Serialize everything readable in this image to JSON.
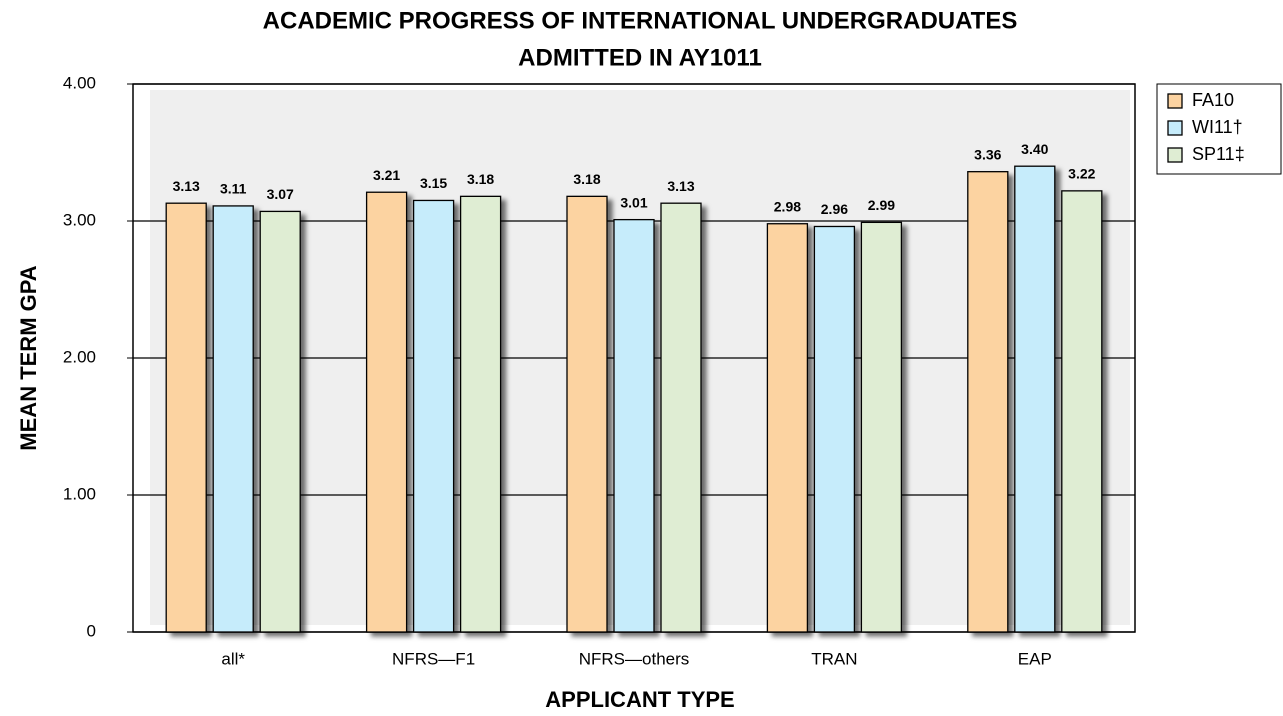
{
  "chart_data": {
    "type": "bar",
    "title": [
      "ACADEMIC PROGRESS OF INTERNATIONAL UNDERGRADUATES",
      "ADMITTED IN AY1011"
    ],
    "x_label": "APPLICANT TYPE",
    "y_label": "MEAN TERM GPA",
    "categories": [
      "all*",
      "NFRS—F1",
      "NFRS—others",
      "TRAN",
      "EAP"
    ],
    "series": [
      {
        "name": "FA10",
        "color": "#fcd3a1",
        "values": [
          3.13,
          3.21,
          3.18,
          2.98,
          3.36
        ],
        "value_labels": [
          "3.13",
          "3.21",
          "3.18",
          "2.98",
          "3.36"
        ]
      },
      {
        "name": "WI11†",
        "color": "#c6ecfb",
        "values": [
          3.11,
          3.15,
          3.01,
          2.96,
          3.4
        ],
        "value_labels": [
          "3.11",
          "3.15",
          "3.01",
          "2.96",
          "3.40"
        ]
      },
      {
        "name": "SP11‡",
        "color": "#dfedd3",
        "values": [
          3.07,
          3.18,
          3.13,
          2.99,
          3.22
        ],
        "value_labels": [
          "3.07",
          "3.18",
          "3.13",
          "2.99",
          "3.22"
        ]
      }
    ],
    "ylim": [
      0,
      4
    ],
    "yticks": [
      0,
      {
        "value": 1,
        "label": "1.00"
      },
      {
        "value": 2,
        "label": "2.00"
      },
      {
        "value": 3,
        "label": "3.00"
      },
      {
        "value": 4,
        "label": "4.00"
      }
    ],
    "grid": true,
    "legend": "right"
  }
}
